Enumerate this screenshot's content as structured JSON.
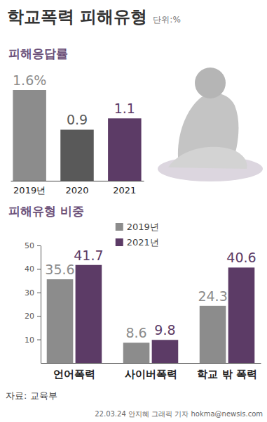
{
  "header": {
    "title": "학교폭력 피해유형",
    "unit": "단위:%"
  },
  "chart_data": [
    {
      "type": "bar",
      "title": "피해응답률",
      "categories": [
        "2019년",
        "2020",
        "2021"
      ],
      "values": [
        1.6,
        0.9,
        1.1
      ],
      "value_labels": [
        "1.6%",
        "0.9",
        "1.1"
      ],
      "colors": [
        "#8c8c8c",
        "#595959",
        "#5c3b66"
      ],
      "ylim": [
        0,
        1.6
      ],
      "grid": false,
      "data_labels": true,
      "tick_labels": "x"
    },
    {
      "type": "bar",
      "title": "피해유형 비중",
      "categories": [
        "언어폭력",
        "사이버폭력",
        "학교 밖 폭력"
      ],
      "series": [
        {
          "name": "2019년",
          "color": "#8c8c8c",
          "values": [
            35.6,
            8.6,
            24.3
          ]
        },
        {
          "name": "2021년",
          "color": "#5c3b66",
          "values": [
            41.7,
            9.8,
            40.6
          ]
        }
      ],
      "ylim": [
        0,
        50
      ],
      "yticks": [
        10,
        20,
        30,
        40,
        50
      ],
      "grid": false,
      "legend": "top",
      "data_labels": true
    }
  ],
  "source": "자료: 교육부",
  "credit": "22.03.24 안지혜 그래픽 기자 hokma@newsis.com"
}
